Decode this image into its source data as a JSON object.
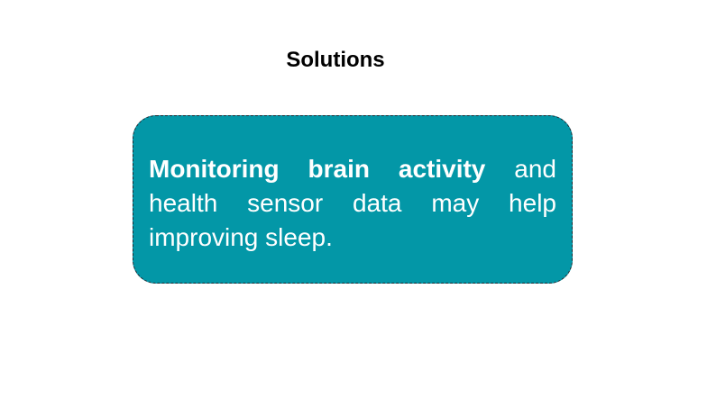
{
  "slide": {
    "title": "Solutions",
    "callout": {
      "bold_text": "Monitoring brain activity",
      "rest_text": " and health sensor data may help improving sleep.",
      "fill_color": "#0397a7",
      "border_color": "#1e2a33",
      "text_color": "#ffffff"
    }
  }
}
